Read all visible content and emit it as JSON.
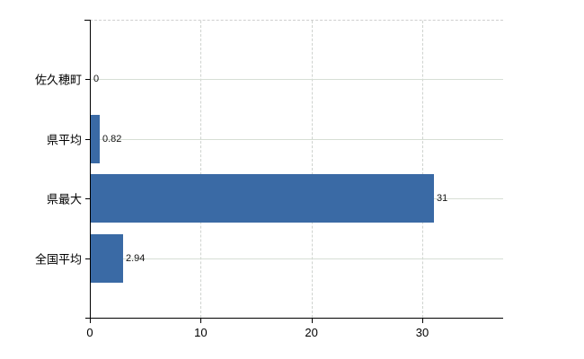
{
  "chart_data": {
    "type": "bar",
    "orientation": "horizontal",
    "title": "",
    "xlabel": "",
    "ylabel": "",
    "categories": [
      "佐久穂町",
      "県平均",
      "県最大",
      "全国平均"
    ],
    "values": [
      0,
      0.82,
      31,
      2.94
    ],
    "value_labels": [
      "0",
      "0.82",
      "31",
      "2.94"
    ],
    "x_ticks": [
      0,
      10,
      20,
      30
    ],
    "x_tick_labels": [
      "0",
      "10",
      "20",
      "30"
    ],
    "xlim": [
      0,
      37.3
    ],
    "grid": {
      "horizontal": "solid line at each category center",
      "vertical": "dashed lines at 10, 20, 30",
      "top_border": "dashed"
    },
    "legend": "none",
    "bar_color": "#3a6aa5"
  },
  "colors": {
    "bar": "#3a6aa5",
    "axis": "#000000",
    "hgrid": "#d7ded5",
    "vgrid": "#cfd3cf",
    "background": "#ffffff",
    "text": "#000000"
  }
}
